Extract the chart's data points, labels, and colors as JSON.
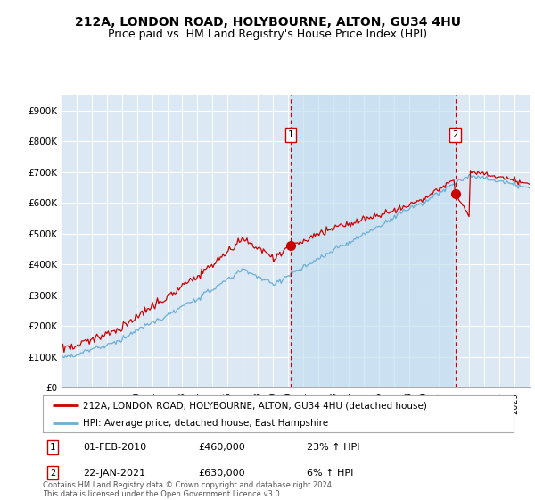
{
  "title": "212A, LONDON ROAD, HOLYBOURNE, ALTON, GU34 4HU",
  "subtitle": "Price paid vs. HM Land Registry's House Price Index (HPI)",
  "ylim": [
    0,
    950000
  ],
  "yticks": [
    0,
    100000,
    200000,
    300000,
    400000,
    500000,
    600000,
    700000,
    800000,
    900000
  ],
  "ytick_labels": [
    "£0",
    "£100K",
    "£200K",
    "£300K",
    "£400K",
    "£500K",
    "£600K",
    "£700K",
    "£800K",
    "£900K"
  ],
  "background_color": "#ffffff",
  "plot_bg_color": "#dce9f5",
  "shade_color": "#c5dff0",
  "grid_color": "#ffffff",
  "sale1_t": 15.17,
  "sale2_t": 26.08,
  "sale1_price": 460000,
  "sale2_price": 630000,
  "sale1_date_str": "01-FEB-2010",
  "sale2_date_str": "22-JAN-2021",
  "sale1_hpi_pct": "23%",
  "sale2_hpi_pct": "6%",
  "legend_entry1": "212A, LONDON ROAD, HOLYBOURNE, ALTON, GU34 4HU (detached house)",
  "legend_entry2": "HPI: Average price, detached house, East Hampshire",
  "footnote": "Contains HM Land Registry data © Crown copyright and database right 2024.\nThis data is licensed under the Open Government Licence v3.0.",
  "hpi_color": "#6baed6",
  "price_color": "#cc0000",
  "vline_color": "#cc0000",
  "title_fontsize": 10,
  "subtitle_fontsize": 9,
  "tick_fontsize": 7.5
}
